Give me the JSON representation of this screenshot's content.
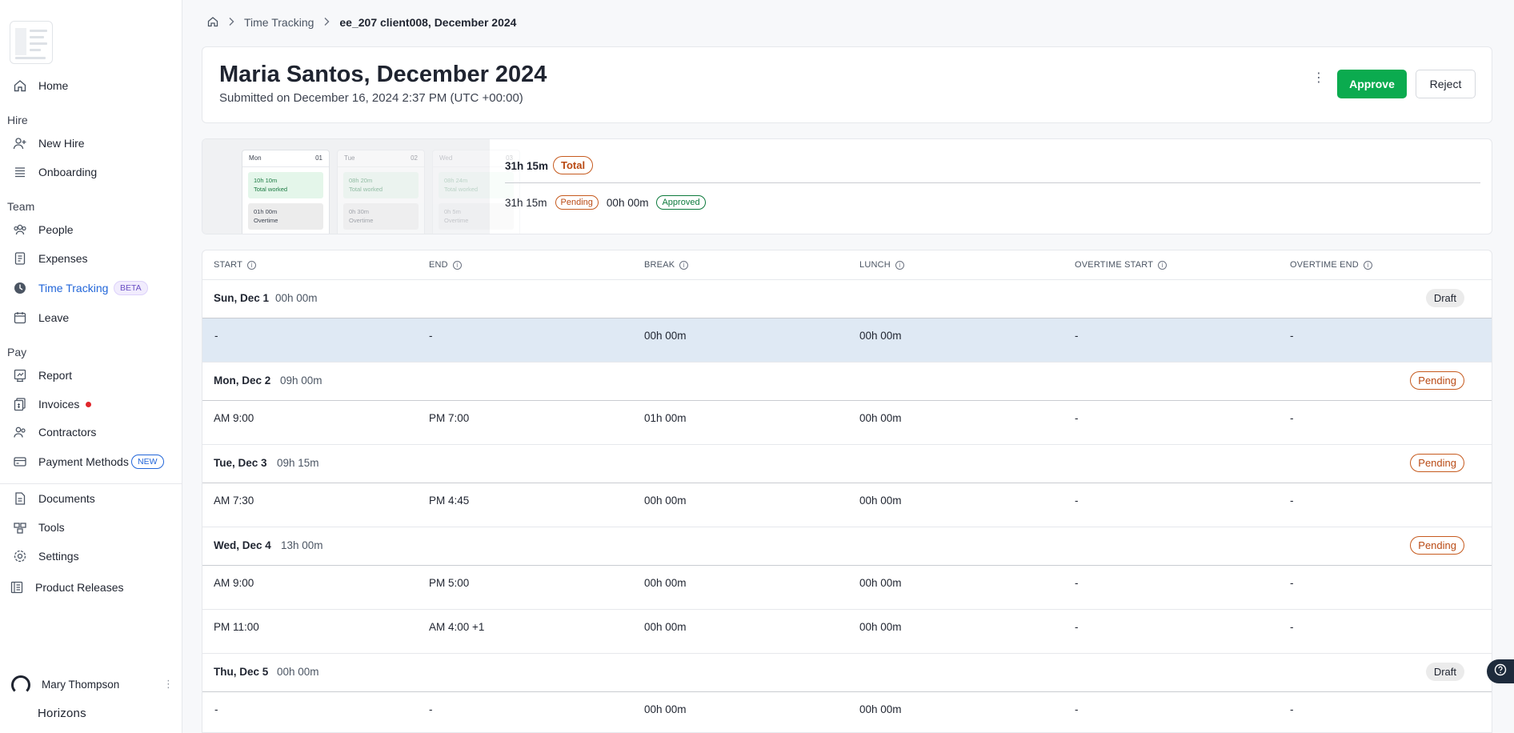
{
  "breadcrumb": {
    "section": "Time Tracking",
    "current": "ee_207 client008, December 2024"
  },
  "sidebar": {
    "home": "Home",
    "sections": {
      "hire": "Hire",
      "team": "Team",
      "pay": "Pay"
    },
    "items": {
      "new_hire": "New Hire",
      "onboarding": "Onboarding",
      "people": "People",
      "expenses": "Expenses",
      "time_tracking": "Time Tracking",
      "time_tracking_badge": "BETA",
      "leave": "Leave",
      "report": "Report",
      "invoices": "Invoices",
      "contractors": "Contractors",
      "payment_methods": "Payment Methods",
      "payment_methods_badge": "NEW",
      "documents": "Documents",
      "tools": "Tools",
      "settings": "Settings",
      "product_releases": "Product Releases"
    },
    "user": {
      "name": "Mary Thompson"
    },
    "brand": "Horizons"
  },
  "header": {
    "title": "Maria Santos, December 2024",
    "subtitle": "Submitted on December 16, 2024 2:37 PM (UTC +00:00)",
    "approve_label": "Approve",
    "reject_label": "Reject",
    "more": "⋮"
  },
  "preview": {
    "cards": [
      {
        "day": "Mon",
        "num": "01",
        "worked": "10h 10m",
        "worked_label": "Total worked",
        "overtime": "01h 00m",
        "overtime_label": "Overtime"
      },
      {
        "day": "Tue",
        "num": "02",
        "worked": "08h 20m",
        "worked_label": "Total worked",
        "overtime": "0h 30m",
        "overtime_label": "Overtime"
      },
      {
        "day": "Wed",
        "num": "03",
        "worked": "08h 24m",
        "worked_label": "Total worked",
        "overtime": "0h 5m",
        "overtime_label": "Overtime"
      }
    ]
  },
  "summary": {
    "total_value": "31h 15m",
    "total_label": "Total",
    "pending_value": "31h 15m",
    "pending_label": "Pending",
    "approved_value": "00h 00m",
    "approved_label": "Approved"
  },
  "table": {
    "columns": [
      "START",
      "END",
      "BREAK",
      "LUNCH",
      "OVERTIME START",
      "OVERTIME END"
    ],
    "days": [
      {
        "name": "Sun, Dec 1",
        "total": "00h 00m",
        "status": "Draft",
        "entries": [
          {
            "start": "-",
            "end": "-",
            "break": "00h 00m",
            "lunch": "00h 00m",
            "ot_start": "-",
            "ot_end": "-"
          }
        ]
      },
      {
        "name": "Mon, Dec 2",
        "total": "09h 00m",
        "status": "Pending",
        "entries": [
          {
            "start": "AM 9:00",
            "end": "PM 7:00",
            "break": "01h 00m",
            "lunch": "00h 00m",
            "ot_start": "-",
            "ot_end": "-"
          }
        ]
      },
      {
        "name": "Tue, Dec 3",
        "total": "09h 15m",
        "status": "Pending",
        "entries": [
          {
            "start": "AM 7:30",
            "end": "PM 4:45",
            "break": "00h 00m",
            "lunch": "00h 00m",
            "ot_start": "-",
            "ot_end": "-"
          }
        ]
      },
      {
        "name": "Wed, Dec 4",
        "total": "13h 00m",
        "status": "Pending",
        "entries": [
          {
            "start": "AM 9:00",
            "end": "PM 5:00",
            "break": "00h 00m",
            "lunch": "00h 00m",
            "ot_start": "-",
            "ot_end": "-"
          },
          {
            "start": "PM 11:00",
            "end": "AM 4:00 +1",
            "break": "00h 00m",
            "lunch": "00h 00m",
            "ot_start": "-",
            "ot_end": "-"
          }
        ]
      },
      {
        "name": "Thu, Dec 5",
        "total": "00h 00m",
        "status": "Draft",
        "entries": [
          {
            "start": "-",
            "end": "-",
            "break": "00h 00m",
            "lunch": "00h 00m",
            "ot_start": "-",
            "ot_end": "-"
          }
        ]
      }
    ]
  },
  "colors": {
    "accent": "#2266d9",
    "approve": "#0bab4f",
    "pending": "#c65a1e",
    "approved": "#0d7a3c",
    "selected_row": "#dfe9f4"
  }
}
